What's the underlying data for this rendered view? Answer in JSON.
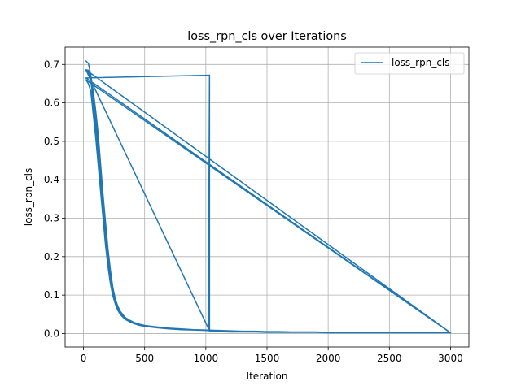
{
  "chart_data": {
    "type": "line",
    "title": "loss_rpn_cls over Iterations",
    "xlabel": "Iteration",
    "ylabel": "loss_rpn_cls",
    "xlim": [
      -150,
      3150
    ],
    "ylim": [
      -0.035,
      0.745
    ],
    "xticks": [
      0,
      500,
      1000,
      1500,
      2000,
      2500,
      3000
    ],
    "yticks": [
      0.0,
      0.1,
      0.2,
      0.3,
      0.4,
      0.5,
      0.6,
      0.7
    ],
    "xtick_labels": [
      "0",
      "500",
      "1000",
      "1500",
      "2000",
      "2500",
      "3000"
    ],
    "ytick_labels": [
      "0.0",
      "0.1",
      "0.2",
      "0.3",
      "0.4",
      "0.5",
      "0.6",
      "0.7"
    ],
    "grid": true,
    "legend": "top-right",
    "color": "#1f77b4",
    "series": [
      {
        "name": "loss_rpn_cls",
        "x": [
          20,
          40,
          60,
          80,
          100,
          120,
          140,
          160,
          180,
          200,
          220,
          240,
          260,
          280,
          300,
          340,
          380,
          420,
          460,
          500,
          600,
          700,
          800,
          900,
          1000,
          1020,
          1030,
          1030,
          20,
          40,
          60,
          80,
          100,
          120,
          140,
          160,
          180,
          200,
          220,
          240,
          260,
          280,
          300,
          340,
          380,
          420,
          460,
          500,
          600,
          700,
          800,
          900,
          1000,
          1100,
          1200,
          1300,
          1400,
          1500,
          1600,
          1700,
          1800,
          1900,
          2000,
          2100,
          2200,
          2300,
          2400,
          2500,
          2600,
          2700,
          2800,
          2900,
          2999,
          20,
          40,
          60,
          80,
          100,
          120,
          140,
          160,
          180,
          200,
          220,
          240,
          260,
          280,
          300,
          340,
          380,
          420,
          460,
          500,
          600,
          700,
          800,
          900,
          1000,
          1100,
          1200,
          1300,
          1400,
          1500,
          1600,
          1700,
          1800,
          1900,
          2000,
          2100,
          2200,
          2300,
          2400,
          2500,
          2600,
          2700,
          2800,
          2900,
          2999,
          20,
          40,
          60,
          80,
          100,
          120,
          140,
          160,
          180,
          200,
          220,
          240,
          260,
          280,
          300,
          340,
          380,
          420,
          460,
          500,
          600,
          700,
          800,
          900,
          1000,
          1100,
          1200,
          1300,
          1400,
          1500,
          1600,
          1700,
          1800,
          1900,
          2000,
          2100,
          2200,
          2300,
          2400,
          2500,
          2600,
          2700,
          2800,
          2900,
          2999,
          20,
          1030,
          1030,
          1100,
          1200,
          1300,
          1400,
          1500,
          1600,
          1700,
          1800,
          1900,
          2000,
          2100,
          2200,
          2300,
          2400,
          2500,
          2600,
          2700,
          2800,
          2900,
          2999,
          20,
          3000
        ],
        "y": [
          0.709,
          0.703,
          0.672,
          0.63,
          0.58,
          0.52,
          0.44,
          0.36,
          0.29,
          0.22,
          0.165,
          0.12,
          0.09,
          0.072,
          0.058,
          0.042,
          0.034,
          0.028,
          0.024,
          0.021,
          0.017,
          0.014,
          0.012,
          0.01,
          0.009,
          0.008,
          0.672,
          0.007,
          0.686,
          0.68,
          0.66,
          0.6,
          0.54,
          0.47,
          0.39,
          0.31,
          0.24,
          0.18,
          0.135,
          0.1,
          0.078,
          0.062,
          0.05,
          0.038,
          0.031,
          0.026,
          0.022,
          0.02,
          0.016,
          0.013,
          0.011,
          0.009,
          0.008,
          0.007,
          0.006,
          0.006,
          0.005,
          0.005,
          0.004,
          0.004,
          0.004,
          0.003,
          0.003,
          0.003,
          0.003,
          0.002,
          0.002,
          0.002,
          0.002,
          0.002,
          0.002,
          0.002,
          0.002,
          0.66,
          0.65,
          0.63,
          0.57,
          0.51,
          0.44,
          0.37,
          0.3,
          0.23,
          0.175,
          0.13,
          0.098,
          0.077,
          0.061,
          0.05,
          0.037,
          0.03,
          0.025,
          0.021,
          0.019,
          0.015,
          0.012,
          0.01,
          0.009,
          0.008,
          0.007,
          0.006,
          0.005,
          0.005,
          0.004,
          0.004,
          0.004,
          0.003,
          0.003,
          0.003,
          0.003,
          0.002,
          0.002,
          0.002,
          0.002,
          0.002,
          0.002,
          0.002,
          0.002,
          0.002,
          0.686,
          0.685,
          0.67,
          0.62,
          0.56,
          0.49,
          0.41,
          0.33,
          0.26,
          0.2,
          0.15,
          0.11,
          0.085,
          0.068,
          0.055,
          0.04,
          0.032,
          0.027,
          0.023,
          0.021,
          0.017,
          0.013,
          0.011,
          0.01,
          0.009,
          0.008,
          0.007,
          0.006,
          0.006,
          0.005,
          0.005,
          0.004,
          0.004,
          0.004,
          0.003,
          0.003,
          0.003,
          0.003,
          0.002,
          0.002,
          0.002,
          0.002,
          0.002,
          0.002,
          0.002,
          0.665,
          0.672,
          0.005,
          0.005,
          0.004,
          0.004,
          0.004,
          0.003,
          0.003,
          0.003,
          0.003,
          0.003,
          0.002,
          0.002,
          0.002,
          0.002,
          0.002,
          0.002,
          0.002,
          0.002,
          0.002,
          0.002,
          0.002,
          0.686,
          0.002
        ]
      }
    ]
  }
}
